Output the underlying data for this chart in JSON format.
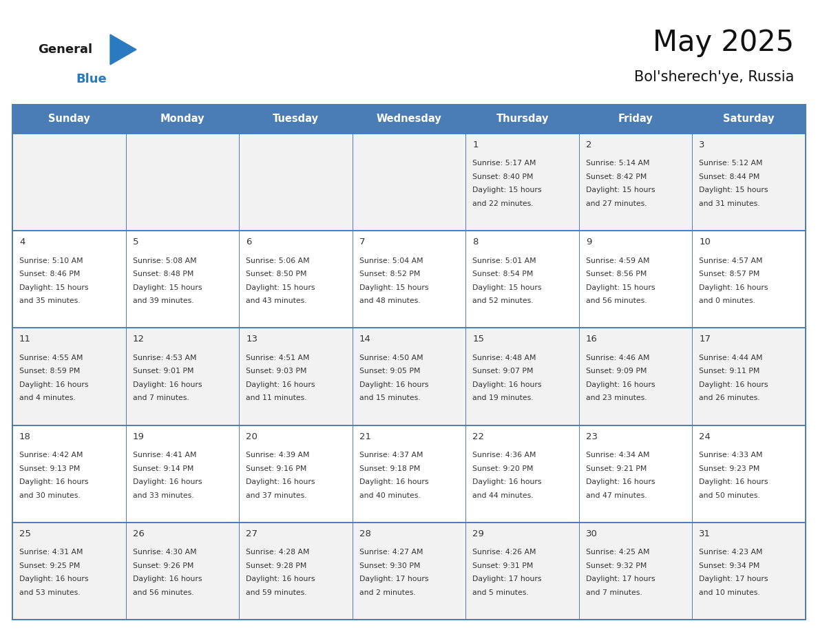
{
  "title": "May 2025",
  "subtitle": "Bol'sherech'ye, Russia",
  "header_color": "#4a7cb5",
  "header_text_color": "#ffffff",
  "day_names": [
    "Sunday",
    "Monday",
    "Tuesday",
    "Wednesday",
    "Thursday",
    "Friday",
    "Saturday"
  ],
  "background_color": "#ffffff",
  "row_bg_even": "#f2f2f2",
  "row_bg_odd": "#ffffff",
  "border_color": "#4a7cb5",
  "text_color": "#333333",
  "days": [
    {
      "day": 1,
      "col": 4,
      "row": 0,
      "sunrise": "5:17 AM",
      "sunset": "8:40 PM",
      "daylight_h": "15 hours",
      "daylight_m": "22 minutes."
    },
    {
      "day": 2,
      "col": 5,
      "row": 0,
      "sunrise": "5:14 AM",
      "sunset": "8:42 PM",
      "daylight_h": "15 hours",
      "daylight_m": "27 minutes."
    },
    {
      "day": 3,
      "col": 6,
      "row": 0,
      "sunrise": "5:12 AM",
      "sunset": "8:44 PM",
      "daylight_h": "15 hours",
      "daylight_m": "31 minutes."
    },
    {
      "day": 4,
      "col": 0,
      "row": 1,
      "sunrise": "5:10 AM",
      "sunset": "8:46 PM",
      "daylight_h": "15 hours",
      "daylight_m": "35 minutes."
    },
    {
      "day": 5,
      "col": 1,
      "row": 1,
      "sunrise": "5:08 AM",
      "sunset": "8:48 PM",
      "daylight_h": "15 hours",
      "daylight_m": "39 minutes."
    },
    {
      "day": 6,
      "col": 2,
      "row": 1,
      "sunrise": "5:06 AM",
      "sunset": "8:50 PM",
      "daylight_h": "15 hours",
      "daylight_m": "43 minutes."
    },
    {
      "day": 7,
      "col": 3,
      "row": 1,
      "sunrise": "5:04 AM",
      "sunset": "8:52 PM",
      "daylight_h": "15 hours",
      "daylight_m": "48 minutes."
    },
    {
      "day": 8,
      "col": 4,
      "row": 1,
      "sunrise": "5:01 AM",
      "sunset": "8:54 PM",
      "daylight_h": "15 hours",
      "daylight_m": "52 minutes."
    },
    {
      "day": 9,
      "col": 5,
      "row": 1,
      "sunrise": "4:59 AM",
      "sunset": "8:56 PM",
      "daylight_h": "15 hours",
      "daylight_m": "56 minutes."
    },
    {
      "day": 10,
      "col": 6,
      "row": 1,
      "sunrise": "4:57 AM",
      "sunset": "8:57 PM",
      "daylight_h": "16 hours",
      "daylight_m": "0 minutes."
    },
    {
      "day": 11,
      "col": 0,
      "row": 2,
      "sunrise": "4:55 AM",
      "sunset": "8:59 PM",
      "daylight_h": "16 hours",
      "daylight_m": "4 minutes."
    },
    {
      "day": 12,
      "col": 1,
      "row": 2,
      "sunrise": "4:53 AM",
      "sunset": "9:01 PM",
      "daylight_h": "16 hours",
      "daylight_m": "7 minutes."
    },
    {
      "day": 13,
      "col": 2,
      "row": 2,
      "sunrise": "4:51 AM",
      "sunset": "9:03 PM",
      "daylight_h": "16 hours",
      "daylight_m": "11 minutes."
    },
    {
      "day": 14,
      "col": 3,
      "row": 2,
      "sunrise": "4:50 AM",
      "sunset": "9:05 PM",
      "daylight_h": "16 hours",
      "daylight_m": "15 minutes."
    },
    {
      "day": 15,
      "col": 4,
      "row": 2,
      "sunrise": "4:48 AM",
      "sunset": "9:07 PM",
      "daylight_h": "16 hours",
      "daylight_m": "19 minutes."
    },
    {
      "day": 16,
      "col": 5,
      "row": 2,
      "sunrise": "4:46 AM",
      "sunset": "9:09 PM",
      "daylight_h": "16 hours",
      "daylight_m": "23 minutes."
    },
    {
      "day": 17,
      "col": 6,
      "row": 2,
      "sunrise": "4:44 AM",
      "sunset": "9:11 PM",
      "daylight_h": "16 hours",
      "daylight_m": "26 minutes."
    },
    {
      "day": 18,
      "col": 0,
      "row": 3,
      "sunrise": "4:42 AM",
      "sunset": "9:13 PM",
      "daylight_h": "16 hours",
      "daylight_m": "30 minutes."
    },
    {
      "day": 19,
      "col": 1,
      "row": 3,
      "sunrise": "4:41 AM",
      "sunset": "9:14 PM",
      "daylight_h": "16 hours",
      "daylight_m": "33 minutes."
    },
    {
      "day": 20,
      "col": 2,
      "row": 3,
      "sunrise": "4:39 AM",
      "sunset": "9:16 PM",
      "daylight_h": "16 hours",
      "daylight_m": "37 minutes."
    },
    {
      "day": 21,
      "col": 3,
      "row": 3,
      "sunrise": "4:37 AM",
      "sunset": "9:18 PM",
      "daylight_h": "16 hours",
      "daylight_m": "40 minutes."
    },
    {
      "day": 22,
      "col": 4,
      "row": 3,
      "sunrise": "4:36 AM",
      "sunset": "9:20 PM",
      "daylight_h": "16 hours",
      "daylight_m": "44 minutes."
    },
    {
      "day": 23,
      "col": 5,
      "row": 3,
      "sunrise": "4:34 AM",
      "sunset": "9:21 PM",
      "daylight_h": "16 hours",
      "daylight_m": "47 minutes."
    },
    {
      "day": 24,
      "col": 6,
      "row": 3,
      "sunrise": "4:33 AM",
      "sunset": "9:23 PM",
      "daylight_h": "16 hours",
      "daylight_m": "50 minutes."
    },
    {
      "day": 25,
      "col": 0,
      "row": 4,
      "sunrise": "4:31 AM",
      "sunset": "9:25 PM",
      "daylight_h": "16 hours",
      "daylight_m": "53 minutes."
    },
    {
      "day": 26,
      "col": 1,
      "row": 4,
      "sunrise": "4:30 AM",
      "sunset": "9:26 PM",
      "daylight_h": "16 hours",
      "daylight_m": "56 minutes."
    },
    {
      "day": 27,
      "col": 2,
      "row": 4,
      "sunrise": "4:28 AM",
      "sunset": "9:28 PM",
      "daylight_h": "16 hours",
      "daylight_m": "59 minutes."
    },
    {
      "day": 28,
      "col": 3,
      "row": 4,
      "sunrise": "4:27 AM",
      "sunset": "9:30 PM",
      "daylight_h": "17 hours",
      "daylight_m": "2 minutes."
    },
    {
      "day": 29,
      "col": 4,
      "row": 4,
      "sunrise": "4:26 AM",
      "sunset": "9:31 PM",
      "daylight_h": "17 hours",
      "daylight_m": "5 minutes."
    },
    {
      "day": 30,
      "col": 5,
      "row": 4,
      "sunrise": "4:25 AM",
      "sunset": "9:32 PM",
      "daylight_h": "17 hours",
      "daylight_m": "7 minutes."
    },
    {
      "day": 31,
      "col": 6,
      "row": 4,
      "sunrise": "4:23 AM",
      "sunset": "9:34 PM",
      "daylight_h": "17 hours",
      "daylight_m": "10 minutes."
    }
  ],
  "logo_general_color": "#1a1a1a",
  "logo_blue_color": "#2a7abf",
  "logo_triangle_color": "#2a7abf",
  "figsize": [
    11.88,
    9.18
  ],
  "dpi": 100
}
